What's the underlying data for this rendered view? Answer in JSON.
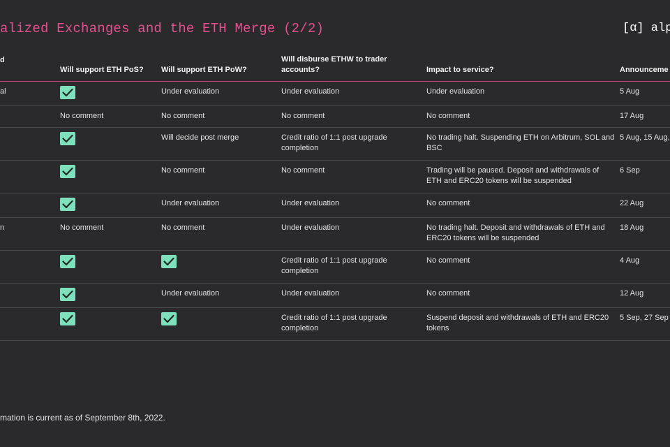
{
  "title": "alized Exchanges and the ETH Merge (2/2)",
  "logo": "[α] alph",
  "headers": {
    "name": "d",
    "pos": "Will support ETH PoS?",
    "pow": "Will support ETH PoW?",
    "ethw": "Will disburse ETHW to trader accounts?",
    "impact": "Impact to service?",
    "date": "Announceme"
  },
  "rows": [
    {
      "name": "al",
      "pos": "check",
      "pow": "Under evaluation",
      "ethw": "Under evaluation",
      "impact": "Under evaluation",
      "date": "5 Aug"
    },
    {
      "name": "",
      "pos": "No comment",
      "pow": "No comment",
      "ethw": "No comment",
      "impact": "No comment",
      "date": "17 Aug"
    },
    {
      "name": "",
      "pos": "check",
      "pow": "Will decide post merge",
      "ethw": "Credit ratio of 1:1 post upgrade completion",
      "impact": "No trading halt. Suspending ETH on Arbitrum, SOL and BSC",
      "date": "5 Aug, 15 Aug,"
    },
    {
      "name": "",
      "pos": "check",
      "pow": "No comment",
      "ethw": "No comment",
      "impact": "Trading will be paused. Deposit and withdrawals of ETH and ERC20 tokens will be suspended",
      "date": "6 Sep"
    },
    {
      "name": "",
      "pos": "check",
      "pow": "Under evaluation",
      "ethw": "Under evaluation",
      "impact": "No comment",
      "date": "22 Aug"
    },
    {
      "name": "n",
      "pos": "No comment",
      "pow": "No comment",
      "ethw": "Under evaluation",
      "impact": "No trading halt. Deposit and withdrawals of ETH and ERC20 tokens will be suspended",
      "date": "18 Aug"
    },
    {
      "name": "",
      "pos": "check",
      "pow": "check",
      "ethw": "Credit ratio of 1:1 post upgrade completion",
      "impact": "No comment",
      "date": "4 Aug"
    },
    {
      "name": "",
      "pos": "check",
      "pow": "Under evaluation",
      "ethw": "Under evaluation",
      "impact": "No comment",
      "date": "12 Aug"
    },
    {
      "name": "",
      "pos": "check",
      "pow": "check",
      "ethw": "Credit ratio of 1:1 post upgrade completion",
      "impact": "Suspend deposit and withdrawals of ETH and ERC20 tokens",
      "date": "5 Sep, 27 Sep"
    }
  ],
  "footnote": "mation is current as of September 8th, 2022.",
  "colors": {
    "accent": "#e4508f",
    "check": "#7fe0bd",
    "background": "#2a2a2c"
  }
}
